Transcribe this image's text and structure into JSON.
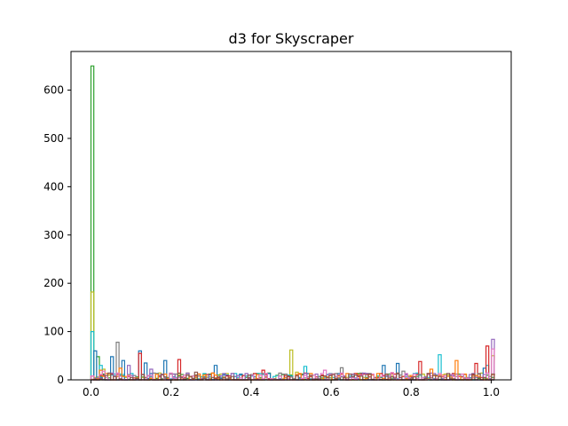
{
  "chart_data": {
    "type": "histogram-step",
    "title": "d3 for Skyscraper",
    "xlabel": "",
    "ylabel": "",
    "xlim": [
      -0.05,
      1.05
    ],
    "ylim": [
      0,
      680
    ],
    "xticks": [
      0.0,
      0.2,
      0.4,
      0.6,
      0.8,
      1.0
    ],
    "xtick_labels": [
      "0.0",
      "0.2",
      "0.4",
      "0.6",
      "0.8",
      "1.0"
    ],
    "yticks": [
      0,
      100,
      200,
      300,
      400,
      500,
      600
    ],
    "ytick_labels": [
      "0",
      "100",
      "200",
      "300",
      "400",
      "500",
      "600"
    ],
    "grid": false,
    "legend": "none",
    "series": [
      {
        "color": "#2ca02c",
        "spikes": [
          [
            0.0,
            650
          ],
          [
            0.012,
            48
          ],
          [
            0.44,
            14
          ],
          [
            0.555,
            10
          ],
          [
            0.745,
            12
          ],
          [
            0.99,
            10
          ]
        ]
      },
      {
        "color": "#bcbd22",
        "spikes": [
          [
            0.0,
            182
          ],
          [
            0.03,
            22
          ],
          [
            0.2,
            12
          ],
          [
            0.5,
            62
          ],
          [
            0.51,
            16
          ],
          [
            0.998,
            50
          ]
        ]
      },
      {
        "color": "#17becf",
        "spikes": [
          [
            0.0,
            100
          ],
          [
            0.02,
            30
          ],
          [
            0.53,
            28
          ],
          [
            0.865,
            52
          ],
          [
            0.99,
            30
          ]
        ]
      },
      {
        "color": "#1f77b4",
        "spikes": [
          [
            0.005,
            60
          ],
          [
            0.05,
            48
          ],
          [
            0.08,
            40
          ],
          [
            0.12,
            60
          ],
          [
            0.135,
            35
          ],
          [
            0.18,
            40
          ],
          [
            0.31,
            30
          ],
          [
            0.73,
            30
          ],
          [
            0.76,
            34
          ],
          [
            0.98,
            24
          ]
        ]
      },
      {
        "color": "#d62728",
        "spikes": [
          [
            0.12,
            55
          ],
          [
            0.22,
            42
          ],
          [
            0.43,
            20
          ],
          [
            0.82,
            38
          ],
          [
            0.96,
            34
          ],
          [
            0.99,
            70
          ]
        ]
      },
      {
        "color": "#7f7f7f",
        "spikes": [
          [
            0.06,
            78
          ],
          [
            0.48,
            12
          ],
          [
            0.62,
            25
          ],
          [
            0.78,
            18
          ]
        ]
      },
      {
        "color": "#9467bd",
        "spikes": [
          [
            0.09,
            30
          ],
          [
            0.15,
            22
          ],
          [
            0.68,
            14
          ],
          [
            1.0,
            84
          ]
        ]
      },
      {
        "color": "#ff7f0e",
        "spikes": [
          [
            0.02,
            20
          ],
          [
            0.07,
            24
          ],
          [
            0.6,
            12
          ],
          [
            0.85,
            22
          ],
          [
            0.91,
            40
          ]
        ]
      },
      {
        "color": "#e377c2",
        "spikes": [
          [
            0.03,
            18
          ],
          [
            0.58,
            20
          ],
          [
            0.75,
            15
          ],
          [
            1.0,
            64
          ]
        ]
      },
      {
        "color": "#8c564b",
        "spikes": [
          [
            0.04,
            14
          ],
          [
            0.26,
            16
          ],
          [
            0.66,
            10
          ]
        ]
      }
    ]
  }
}
